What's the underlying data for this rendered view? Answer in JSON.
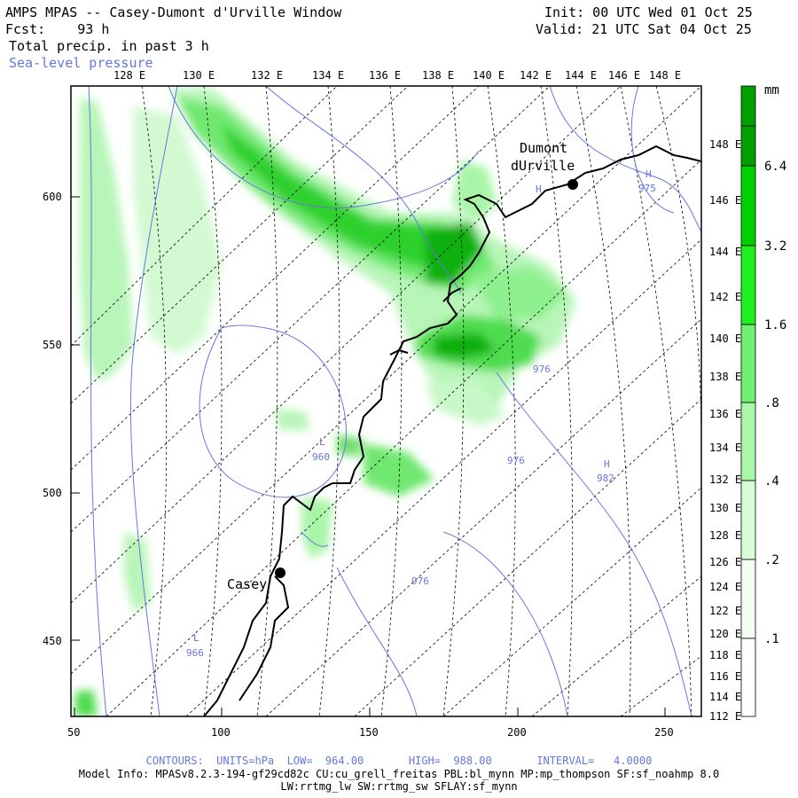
{
  "header": {
    "title": "AMPS MPAS -- Casey-Dumont d'Urville Window",
    "fcst": "Fcst:    93 h",
    "field": "Total precip. in past 3 h",
    "overlay": "Sea-level pressure",
    "init": "Init: 00 UTC Wed 01 Oct 25",
    "valid": "Valid: 21 UTC Sat 04 Oct 25"
  },
  "axes": {
    "top_lon": [
      "128 E",
      "130 E",
      "132 E",
      "134 E",
      "136 E",
      "138 E",
      "140 E",
      "142 E",
      "144 E",
      "146 E",
      "148 E"
    ],
    "left": [
      "600",
      "550",
      "500",
      "450"
    ],
    "bottom": [
      "50",
      "100",
      "150",
      "200",
      "250"
    ],
    "right_lon": [
      "148 E",
      "146 E",
      "144 E",
      "142 E",
      "140 E",
      "138 E",
      "136 E",
      "134 E",
      "132 E",
      "130 E",
      "128 E",
      "126 E",
      "124 E",
      "122 E",
      "120 E",
      "118 E",
      "116 E",
      "114 E",
      "112 E"
    ]
  },
  "stations": [
    {
      "name_line1": "Dumont",
      "name_line2": "dUrville"
    },
    {
      "name": "Casey"
    }
  ],
  "pressure_labels": [
    {
      "text": "H",
      "value": "975"
    },
    {
      "text": "H",
      "value": ""
    },
    {
      "text": "976"
    },
    {
      "text": "L",
      "value": "960"
    },
    {
      "text": "976"
    },
    {
      "text": "H",
      "value": "982"
    },
    {
      "text": "976"
    },
    {
      "text": "L",
      "value": "966"
    }
  ],
  "colorbar": {
    "unit": "mm",
    "labels": [
      "6.4",
      "3.2",
      "1.6",
      ".8",
      ".4",
      ".2",
      ".1"
    ],
    "colors": [
      "#00a000",
      "#00d000",
      "#20f020",
      "#70f070",
      "#a8f8a8",
      "#d8fcd8",
      "#f4fff4",
      "#ffffff"
    ]
  },
  "footer": {
    "contours": "CONTOURS:  UNITS=hPa  LOW=  964.00       HIGH=  988.00       INTERVAL=   4.0000",
    "model_info": "Model Info: MPASv8.2.3-194-gf29cd82c CU:cu_grell_freitas PBL:bl_mynn MP:mp_thompson SF:sf_noahmp 8.0",
    "model_info2": "LW:rrtmg_lw SW:rrtmg_sw SFLAY:sf_mynn"
  }
}
